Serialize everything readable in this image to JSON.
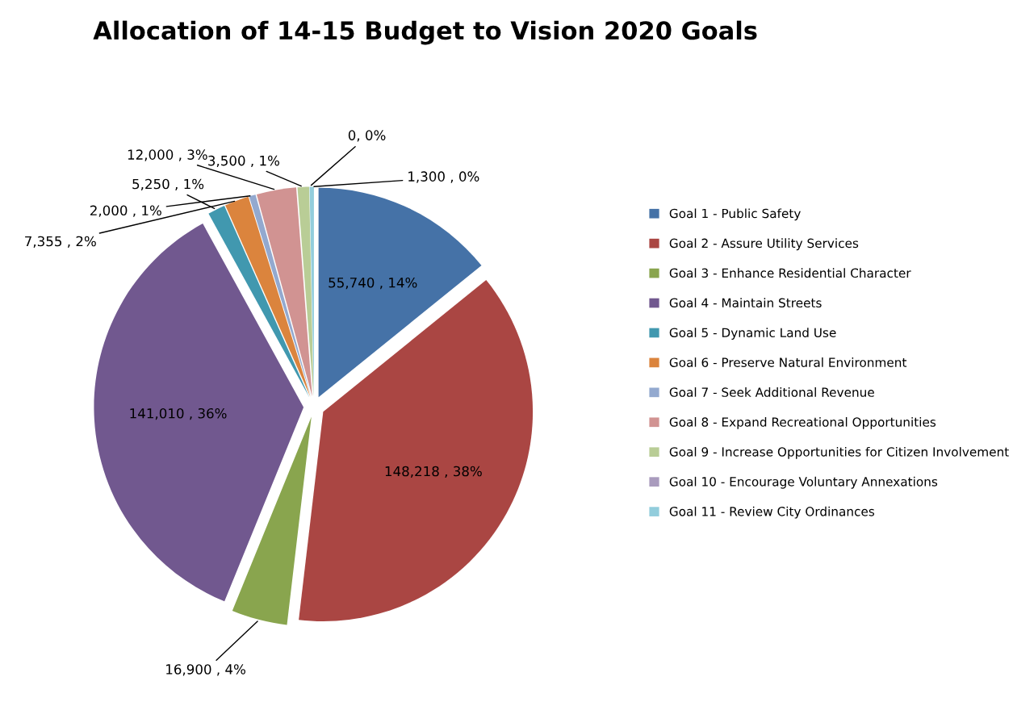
{
  "chart_data": {
    "type": "pie",
    "title": "Allocation of 14-15 Budget to Vision 2020 Goals",
    "categories": [
      "Goal 1 - Public Safety",
      "Goal 2 - Assure Utility Services",
      "Goal 3 - Enhance Residential Character",
      "Goal 4 - Maintain Streets",
      "Goal 5 - Dynamic Land Use",
      "Goal 6 - Preserve Natural Environment",
      "Goal 7 - Seek Additional Revenue",
      "Goal 8 - Expand Recreational Opportunities",
      "Goal 9 - Increase Opportunities for Citizen Involvement",
      "Goal 10 - Encourage Voluntary Annexations",
      "Goal 11 - Review City Ordinances"
    ],
    "values": [
      55740,
      148218,
      16900,
      141010,
      5250,
      7355,
      2000,
      12000,
      3500,
      0,
      1300
    ],
    "value_labels": [
      "55,740 , 14%",
      "148,218 , 38%",
      "16,900 , 4%",
      "141,010 , 36%",
      "5,250 , 1%",
      "7,355 , 2%",
      "2,000 , 1%",
      "12,000 , 3%",
      "3,500 , 1%",
      "0, 0%",
      "1,300 , 0%"
    ],
    "colors": [
      "#4572a7",
      "#aa4643",
      "#89a54e",
      "#71588f",
      "#4198af",
      "#db843d",
      "#93a9cf",
      "#d19392",
      "#b9cd96",
      "#a99bbd",
      "#92cddc"
    ],
    "legend": "right"
  }
}
